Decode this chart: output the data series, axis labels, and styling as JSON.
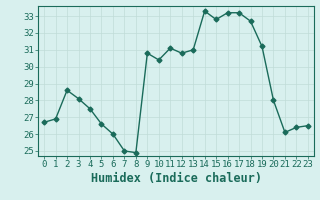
{
  "x": [
    0,
    1,
    2,
    3,
    4,
    5,
    6,
    7,
    8,
    9,
    10,
    11,
    12,
    13,
    14,
    15,
    16,
    17,
    18,
    19,
    20,
    21,
    22,
    23
  ],
  "y": [
    26.7,
    26.9,
    28.6,
    28.1,
    27.5,
    26.6,
    26.0,
    25.0,
    24.9,
    30.8,
    30.4,
    31.1,
    30.8,
    31.0,
    33.3,
    32.8,
    33.2,
    33.2,
    32.7,
    31.2,
    28.0,
    26.1,
    26.4,
    26.5
  ],
  "line_color": "#1a6b5a",
  "marker": "D",
  "markersize": 2.5,
  "linewidth": 1.0,
  "bg_color": "#d8f0ee",
  "grid_color": "#c0dcd8",
  "xlabel": "Humidex (Indice chaleur)",
  "xlim": [
    -0.5,
    23.5
  ],
  "ylim": [
    24.7,
    33.6
  ],
  "yticks": [
    25,
    26,
    27,
    28,
    29,
    30,
    31,
    32,
    33
  ],
  "xticks": [
    0,
    1,
    2,
    3,
    4,
    5,
    6,
    7,
    8,
    9,
    10,
    11,
    12,
    13,
    14,
    15,
    16,
    17,
    18,
    19,
    20,
    21,
    22,
    23
  ],
  "tick_color": "#1a6b5a",
  "label_color": "#1a6b5a",
  "tick_fontsize": 6.5,
  "xlabel_fontsize": 8.5
}
